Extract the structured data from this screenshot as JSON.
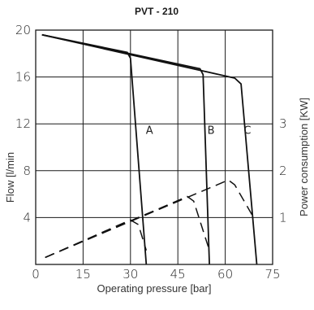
{
  "chart_data": {
    "type": "line",
    "title": "PVT - 210",
    "xlabel": "Operating pressure [bar]",
    "ylabel": "Flow [l/min",
    "y2label": "Power consumption [KW]",
    "xlim": [
      0,
      75
    ],
    "ylim": [
      0,
      20
    ],
    "y2lim": [
      0,
      5
    ],
    "xticks": [
      "0",
      "15",
      "30",
      "45",
      "60",
      "75"
    ],
    "yticks": [
      "4",
      "8",
      "12",
      "16",
      "20"
    ],
    "y2ticks": [
      "1",
      "2",
      "3"
    ],
    "grid": true,
    "flow_curves": [
      {
        "name": "A",
        "x": [
          2,
          29,
          30,
          35
        ],
        "y": [
          19.6,
          18.1,
          17.6,
          0
        ]
      },
      {
        "name": "B",
        "x": [
          2,
          52,
          53,
          55
        ],
        "y": [
          19.6,
          16.7,
          16.2,
          0
        ]
      },
      {
        "name": "C",
        "x": [
          2,
          63,
          65,
          70
        ],
        "y": [
          19.6,
          15.9,
          15.4,
          0
        ]
      }
    ],
    "power_curves": [
      {
        "name": "A",
        "x": [
          3,
          30,
          32.5,
          35
        ],
        "y": [
          0.15,
          0.95,
          0.85,
          0.3
        ]
      },
      {
        "name": "B",
        "x": [
          3,
          48,
          50,
          55
        ],
        "y": [
          0.15,
          1.45,
          1.35,
          0.3
        ]
      },
      {
        "name": "C",
        "x": [
          3,
          61,
          63,
          69
        ],
        "y": [
          0.15,
          1.8,
          1.7,
          1.0
        ]
      }
    ],
    "curve_labels": [
      {
        "text": "A",
        "x": 36,
        "y": 11.5
      },
      {
        "text": "B",
        "x": 55.5,
        "y": 11.5
      },
      {
        "text": "C",
        "x": 67,
        "y": 11.5
      }
    ]
  }
}
